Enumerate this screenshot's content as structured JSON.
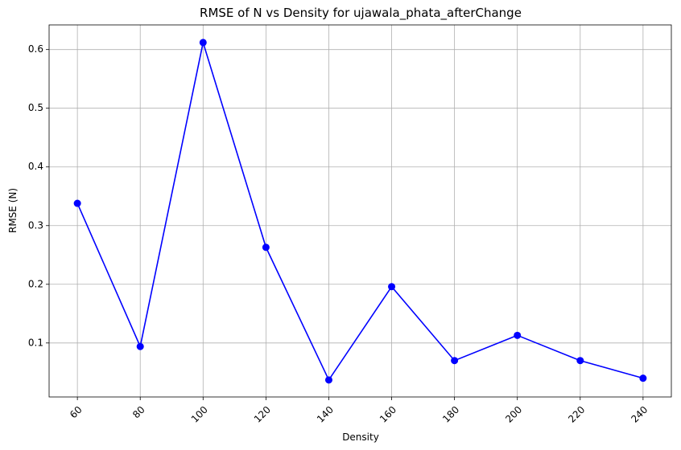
{
  "chart_data": {
    "type": "line",
    "title": "RMSE of N vs Density for ujawala_phata_afterChange",
    "xlabel": "Density",
    "ylabel": "RMSE (N)",
    "x": [
      60,
      80,
      100,
      120,
      140,
      160,
      180,
      200,
      220,
      240
    ],
    "x_tick_labels": [
      "60",
      "80",
      "100",
      "120",
      "140",
      "160",
      "180",
      "200",
      "220",
      "240"
    ],
    "x_tick_rotation_deg": 45,
    "y_ticks": [
      0.1,
      0.2,
      0.3,
      0.4,
      0.5,
      0.6
    ],
    "y_tick_labels": [
      "0.1",
      "0.2",
      "0.3",
      "0.4",
      "0.5",
      "0.6"
    ],
    "xlim": [
      51,
      249
    ],
    "ylim": [
      0.008,
      0.642
    ],
    "grid": true,
    "series": [
      {
        "values": [
          0.338,
          0.094,
          0.612,
          0.263,
          0.037,
          0.196,
          0.07,
          0.113,
          0.07,
          0.04
        ],
        "color": "#0000ff",
        "marker": "circle"
      }
    ]
  }
}
